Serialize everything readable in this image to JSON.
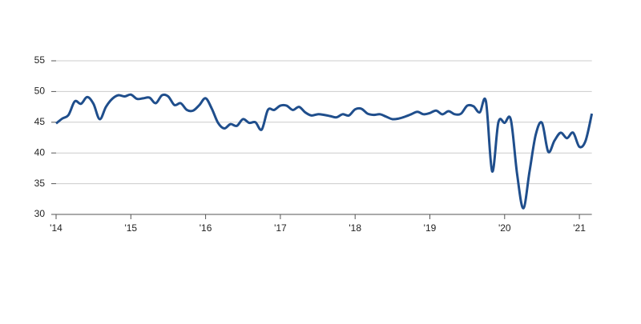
{
  "chart_data": {
    "type": "line",
    "categories": [
      "'14",
      null,
      null,
      null,
      null,
      null,
      null,
      null,
      null,
      null,
      null,
      null,
      "'15",
      null,
      null,
      null,
      null,
      null,
      null,
      null,
      null,
      null,
      null,
      null,
      "'16",
      null,
      null,
      null,
      null,
      null,
      null,
      null,
      null,
      null,
      null,
      null,
      "'17",
      null,
      null,
      null,
      null,
      null,
      null,
      null,
      null,
      null,
      null,
      null,
      "'18",
      null,
      null,
      null,
      null,
      null,
      null,
      null,
      null,
      null,
      null,
      null,
      "'19",
      null,
      null,
      null,
      null,
      null,
      null,
      null,
      null,
      null,
      null,
      null,
      "'20",
      null,
      null,
      null,
      null,
      null,
      null,
      null,
      null,
      null,
      null,
      null,
      "'21",
      null,
      null
    ],
    "series": [
      {
        "color": "#1f4e8c",
        "values": [
          44.8,
          45.6,
          46.2,
          48.4,
          48.0,
          49.1,
          48.0,
          45.5,
          47.5,
          48.8,
          49.4,
          49.2,
          49.5,
          48.8,
          48.9,
          49.0,
          48.1,
          49.4,
          49.2,
          47.8,
          48.1,
          47.0,
          46.9,
          47.8,
          48.9,
          47.2,
          44.9,
          44.0,
          44.7,
          44.4,
          45.5,
          44.9,
          45.0,
          43.8,
          47.0,
          47.0,
          47.7,
          47.7,
          47.0,
          47.5,
          46.6,
          46.1,
          46.3,
          46.2,
          46.0,
          45.8,
          46.3,
          46.1,
          47.1,
          47.2,
          46.4,
          46.2,
          46.3,
          45.9,
          45.5,
          45.6,
          45.9,
          46.3,
          46.7,
          46.3,
          46.5,
          46.9,
          46.3,
          46.8,
          46.3,
          46.4,
          47.7,
          47.6,
          46.6,
          48.4,
          37.0,
          45.0,
          44.9,
          45.4,
          36.6,
          31.0,
          37.0,
          43.0,
          44.9,
          40.2,
          42.0,
          43.3,
          42.4,
          43.3,
          41.0,
          42.0,
          46.4
        ]
      }
    ],
    "ylim": [
      30,
      55
    ],
    "yticks": [
      30,
      35,
      40,
      45,
      50,
      55
    ],
    "grid": true
  }
}
